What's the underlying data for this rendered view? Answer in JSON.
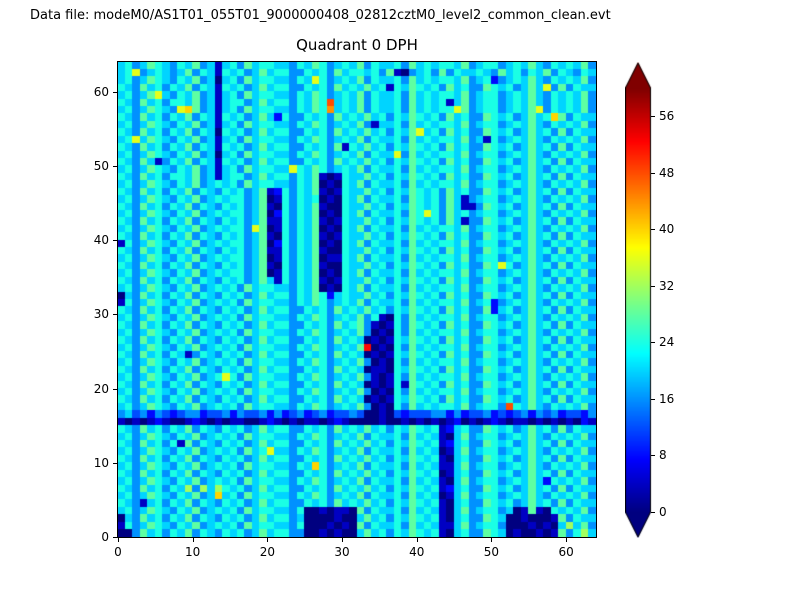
{
  "header": {
    "data_file_label": "Data file: modeM0/AS1T01_055T01_9000000408_02812cztM0_level2_common_clean.evt"
  },
  "chart_data": {
    "type": "heatmap",
    "title": "Quadrant 0 DPH",
    "xlabel": "",
    "ylabel": "",
    "x_range": [
      0,
      64
    ],
    "y_range": [
      0,
      64
    ],
    "x_ticks": [
      0,
      10,
      20,
      30,
      40,
      50,
      60
    ],
    "y_ticks": [
      0,
      10,
      20,
      30,
      40,
      50,
      60
    ],
    "colormap": "jet",
    "value_range": [
      0,
      60
    ],
    "colorbar": {
      "ticks": [
        0,
        8,
        16,
        24,
        32,
        40,
        48,
        56
      ],
      "extend": "both"
    },
    "grid_encoding": {
      "alphabet": "0123456789ABCDEF",
      "value_per_level": 4,
      "order": "rows_top_to_bottom",
      "note": "each char is one 1x1 detector cell; value = index(char) * 4 counts, estimated from pixel colors"
    },
    "rows_top_to_bottom": [
      "5645765465745156475665546576456574655647565665745664565754656574",
      "5694565457465165645756644656475665647104564746556547564657465465",
      "5645765465745056475665546596456574655647565665745624565754656574",
      "6547564657465165645756644656475657561657656475644765645759474655",
      "5645795465745156475665546576456574655647565665745664565754656574",
      "6547564665745156645756646576C56574655647565615745664565754656574",
      "564576549A745156475665546576B56574655647565669745664565794656574",
      "6547564657465165645752644656475657564657656475644765645756A74655",
      "5645765465745156475665546576456574155647565665745664565754656574",
      "6547564657465065645756644656475657564657956475644765645756474655",
      "5695765465745156475665546576456574655647565665745164565754656574",
      "6547564657465165645756644656471657564657656475644765645756474655",
      "5645765465745056475665546576456574655947565665745664565754656574",
      "6547514657465165645756644656475657564657656475644765645756474655",
      "5645765465745156475665596576456574655647565665745664565754656574",
      "6547564665745156645756646571016557564657656475644765645756474655",
      "5645765465745656475665546570106574655647565665745664565754656574",
      "6547564657465465645712646571016557564657656475644765645756474655",
      "5645765465745656645701646560106574655647656475145664565754656574",
      "6547564657465465645710646571006557564657656475114765645756474655",
      "5645765465745656645702646570106574655647696475645664565754656574",
      "6547564657465465645711646571016557564657656475144765645756474655",
      "5645765465745656649701646570106574655647565665745664565754656574",
      "6547564657465465645710646571016557564657656475644765645756474655",
      "1645765465745656645702646570106574655647565665745664565754656574",
      "6547564657465465645711646571006557564657656475644765645756474655",
      "5645765465745656645701646570116574655647565665745664565754656574",
      "6547564657465465645710646571006557564657656475644769645756474655",
      "5645765465745656645701646570106574655647565665745664565754656574",
      "6547564657465465645751646571016557564657656475644765645756474655",
      "5645765465745656475665546570106574655647565665745664565754656574",
      "0547564657465465645756646576256557564657656475644765645756474655",
      "1645765465745656475665546576456574655647565665745624565754656574",
      "6547564657465465645756644656475657564657656475644725645756474655",
      "5645765465745656475665546576456574610647565665745664565754656574",
      "6547564657465465645756644656475674101647656475644765645756474655",
      "5645765465745656475665546576456574010647565665745664565754656574",
      "6547564657465465645756644656475650101657656475644765645756474655",
      "564576546574565647566554657645657D010647565665745664565754656574",
      "6547564651465465645756644656475650101657656475644765645756474655",
      "5645765465745656475665546576456574010647565665745664565754656574",
      "6547564657465465645756644656475650110657656475644765645756474655",
      "5645765465745696475665546576456574101647565665745664565754656574",
      "6547564657465465645756644656475650101617656475644765645756474655",
      "5645765465745656475665546576456574010647565665745664565754656574",
      "6547564657465465645756644656475650101657656475644765645756474655",
      "5645765465745656475665546576456574010647565665745664C65754656574",
      "4534243234423342433424234234233430010323334424233423234243423324",
      "1010121001210101100121010110121000010010101012010121011010101021",
      "6547564657465465645756644656475657564657656125644765645756474655",
      "5645765465745656475665546576456574655647565105745664565754656574",
      "6547564617465465645756644656475657564657656125644765645756474655",
      "5645765465745656475695546576456574655647565015745664565754656574",
      "6547564657465465645756644656475657564657656105644765645756474655",
      "56457654657456564756655465A6456574655647565115745664565754656574",
      "6547564657465465645756644656475657564657656015644765645756474655",
      "5645765465745656475665546576456574655647565105745664565752656574",
      "6547564658485865645756644656475657564657656125644765645756474655",
      "5645765465745A56475665546576456574655647565015745664565754656574",
      "6541564657465465645756644656475657564657656105644765645756474655",
      "5645765465745656475665546001011074655647565105745664501710656574",
      "0547564657465465645756645000010057564657656105644765001000174655",
      "1645765465745656475665546000101074655647565115745664000101058574",
      "0047564657465465645756644001010057564657656105644765010010174685"
    ]
  }
}
